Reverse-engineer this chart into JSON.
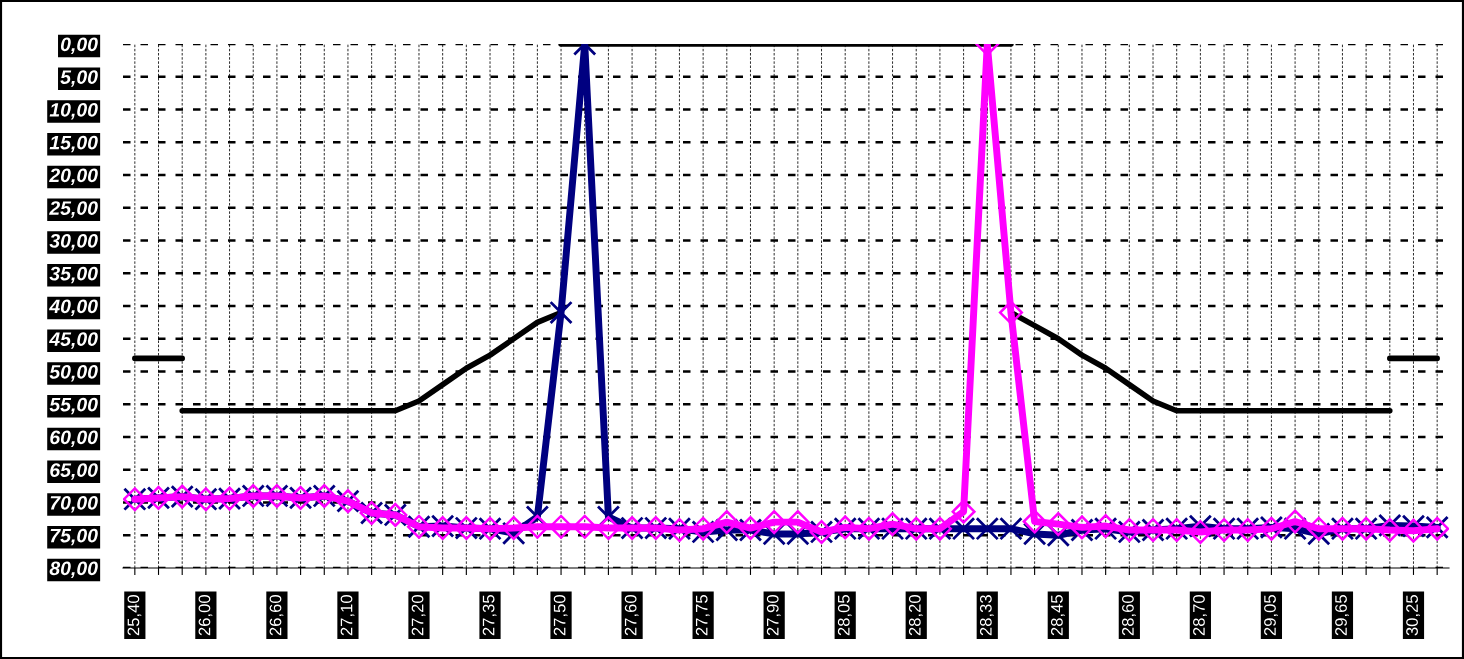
{
  "chart_data": {
    "type": "line",
    "categories": [
      "25,40",
      null,
      null,
      "26,00",
      null,
      null,
      "26,60",
      null,
      null,
      "27,10",
      null,
      null,
      "27,20",
      null,
      null,
      "27,35",
      null,
      null,
      "27,50",
      null,
      null,
      "27,60",
      null,
      null,
      "27,75",
      null,
      null,
      "27,90",
      null,
      null,
      "28,05",
      null,
      null,
      "28,20",
      null,
      null,
      "28,33",
      null,
      null,
      "28,45",
      null,
      null,
      "28,60",
      null,
      null,
      "28,70",
      null,
      null,
      "29,05",
      null,
      null,
      "29,65",
      null,
      null,
      "30,25",
      null
    ],
    "series": [
      {
        "color": "#000000",
        "marker": "none",
        "values": [
          48,
          48,
          48,
          null,
          null,
          null,
          null,
          null,
          null,
          null,
          null,
          null,
          null,
          null,
          null,
          null,
          null,
          null,
          null,
          null,
          null,
          null,
          null,
          null,
          null,
          null,
          null,
          null,
          null,
          null,
          null,
          null,
          null,
          null,
          null,
          null,
          null,
          null,
          null,
          null,
          null,
          null,
          null,
          null,
          null,
          null,
          null,
          null,
          null,
          null,
          null,
          null,
          null,
          48,
          48,
          48
        ]
      },
      {
        "color": "#000000",
        "marker": "none",
        "values": [
          null,
          null,
          56,
          56,
          56,
          56,
          56,
          56,
          56,
          56,
          56,
          56,
          54.5,
          52,
          49.5,
          47.5,
          45,
          42.5,
          41,
          null,
          null,
          null,
          null,
          null,
          null,
          null,
          null,
          null,
          null,
          null,
          null,
          null,
          null,
          null,
          null,
          null,
          null,
          41,
          43,
          45,
          47.5,
          49.5,
          52,
          54.5,
          56,
          56,
          56,
          56,
          56,
          56,
          56,
          56,
          56,
          56,
          null,
          null
        ]
      },
      {
        "color": "#000000",
        "marker": "none",
        "values": [
          null,
          null,
          null,
          null,
          null,
          null,
          null,
          null,
          null,
          null,
          null,
          null,
          null,
          null,
          null,
          null,
          null,
          null,
          0,
          0,
          0,
          0,
          0,
          0,
          0,
          0,
          0,
          0,
          0,
          0,
          0,
          0,
          0,
          0,
          0,
          0,
          0,
          0,
          null,
          null,
          null,
          null,
          null,
          null,
          null,
          null,
          null,
          null,
          null,
          null,
          null,
          null,
          null,
          null,
          null,
          null
        ]
      },
      {
        "color": "#000080",
        "marker": "cross",
        "values": [
          69.5,
          69.3,
          69.1,
          69.5,
          69.4,
          69,
          69,
          69.3,
          69,
          69.8,
          71.6,
          71.9,
          73.7,
          73.6,
          73.9,
          74,
          74.7,
          72.2,
          41,
          0,
          72.2,
          73.9,
          73.9,
          74,
          74.5,
          74.2,
          74.2,
          74.8,
          74.8,
          74.5,
          74,
          74,
          74,
          74,
          74,
          74,
          74,
          74,
          74.8,
          75,
          74.2,
          74,
          74.5,
          74.2,
          74,
          73.6,
          74,
          74,
          73.8,
          74,
          74.8,
          74,
          74,
          73.5,
          73.6,
          73.8
        ]
      },
      {
        "color": "#ff00ff",
        "marker": "diamond",
        "values": [
          69.5,
          69.3,
          69.1,
          69.5,
          69.4,
          69,
          69,
          69.3,
          69,
          69.8,
          71.6,
          71.9,
          73.7,
          73.9,
          73.9,
          74,
          73.9,
          73.7,
          73.7,
          73.7,
          73.9,
          73.9,
          73.9,
          74.2,
          74,
          73,
          73.9,
          73,
          73,
          74.5,
          73.8,
          74,
          73.3,
          74,
          74,
          71.4,
          0,
          41,
          72.9,
          73.3,
          73.8,
          73.6,
          74.2,
          74.2,
          74.2,
          74.5,
          74.2,
          74.2,
          74,
          72.9,
          74,
          74,
          74,
          74.2,
          74.3,
          74
        ]
      }
    ],
    "ylim": [
      80,
      0
    ],
    "yticks": [
      {
        "value": 0,
        "label": "0,00"
      },
      {
        "value": 5,
        "label": "5,00"
      },
      {
        "value": 10,
        "label": "10,00"
      },
      {
        "value": 15,
        "label": "15,00"
      },
      {
        "value": 20,
        "label": "20,00"
      },
      {
        "value": 25,
        "label": "25,00"
      },
      {
        "value": 30,
        "label": "30,00"
      },
      {
        "value": 35,
        "label": "35,00"
      },
      {
        "value": 40,
        "label": "40,00"
      },
      {
        "value": 45,
        "label": "45,00"
      },
      {
        "value": 50,
        "label": "50,00"
      },
      {
        "value": 55,
        "label": "55,00"
      },
      {
        "value": 60,
        "label": "60,00"
      },
      {
        "value": 65,
        "label": "65,00"
      },
      {
        "value": 70,
        "label": "70,00"
      },
      {
        "value": 75,
        "label": "75,00"
      },
      {
        "value": 80,
        "label": "80,00"
      }
    ],
    "grid": true,
    "legend": false,
    "line_style": "solid"
  }
}
